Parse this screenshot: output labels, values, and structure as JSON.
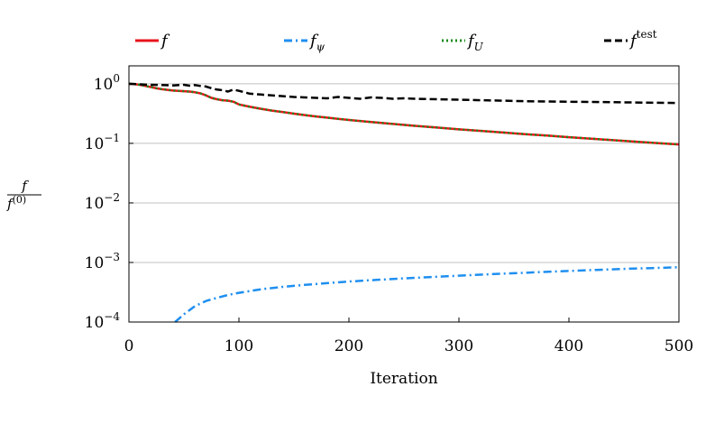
{
  "chart_data": {
    "type": "line",
    "xlabel": "Iteration",
    "ylabel": {
      "numerator": "f",
      "denominator_base": "f",
      "denominator_sup": "(0)"
    },
    "xlim": [
      0,
      500
    ],
    "ylim": [
      0.0001,
      2.0
    ],
    "yscale": "log",
    "grid": "horizontal",
    "legend_position": "top",
    "x_ticks": [
      {
        "value": 0,
        "label": "0"
      },
      {
        "value": 100,
        "label": "100"
      },
      {
        "value": 200,
        "label": "200"
      },
      {
        "value": 300,
        "label": "300"
      },
      {
        "value": 400,
        "label": "400"
      },
      {
        "value": 500,
        "label": "500"
      }
    ],
    "y_ticks": [
      {
        "value": 1,
        "base": "10",
        "exp": "0"
      },
      {
        "value": 0.1,
        "base": "10",
        "exp": "−1"
      },
      {
        "value": 0.01,
        "base": "10",
        "exp": "−2"
      },
      {
        "value": 0.001,
        "base": "10",
        "exp": "−3"
      },
      {
        "value": 0.0001,
        "base": "10",
        "exp": "−4"
      }
    ],
    "series": [
      {
        "name": "f",
        "subscript": "",
        "superscript": "",
        "color": "#e8141c",
        "dash": "solid",
        "points": [
          [
            0,
            1.0
          ],
          [
            5,
            0.99
          ],
          [
            10,
            0.96
          ],
          [
            15,
            0.92
          ],
          [
            20,
            0.88
          ],
          [
            25,
            0.84
          ],
          [
            30,
            0.81
          ],
          [
            35,
            0.79
          ],
          [
            40,
            0.77
          ],
          [
            45,
            0.76
          ],
          [
            50,
            0.75
          ],
          [
            55,
            0.74
          ],
          [
            60,
            0.72
          ],
          [
            65,
            0.69
          ],
          [
            70,
            0.64
          ],
          [
            75,
            0.58
          ],
          [
            80,
            0.55
          ],
          [
            85,
            0.53
          ],
          [
            90,
            0.52
          ],
          [
            95,
            0.5
          ],
          [
            100,
            0.45
          ],
          [
            110,
            0.41
          ],
          [
            120,
            0.38
          ],
          [
            130,
            0.355
          ],
          [
            140,
            0.335
          ],
          [
            150,
            0.315
          ],
          [
            160,
            0.298
          ],
          [
            170,
            0.283
          ],
          [
            180,
            0.27
          ],
          [
            190,
            0.258
          ],
          [
            200,
            0.247
          ],
          [
            220,
            0.228
          ],
          [
            240,
            0.212
          ],
          [
            260,
            0.197
          ],
          [
            280,
            0.184
          ],
          [
            300,
            0.172
          ],
          [
            320,
            0.162
          ],
          [
            340,
            0.152
          ],
          [
            360,
            0.143
          ],
          [
            380,
            0.135
          ],
          [
            400,
            0.127
          ],
          [
            420,
            0.12
          ],
          [
            440,
            0.113
          ],
          [
            460,
            0.107
          ],
          [
            480,
            0.101
          ],
          [
            500,
            0.096
          ]
        ]
      },
      {
        "name": "f",
        "subscript": "ψ",
        "superscript": "",
        "color": "#1f8ff0",
        "dash": "dashdot",
        "points": [
          [
            42,
            0.0001
          ],
          [
            50,
            0.000135
          ],
          [
            60,
            0.000185
          ],
          [
            70,
            0.000225
          ],
          [
            80,
            0.000255
          ],
          [
            90,
            0.000285
          ],
          [
            100,
            0.00031
          ],
          [
            120,
            0.000355
          ],
          [
            140,
            0.00039
          ],
          [
            160,
            0.00042
          ],
          [
            180,
            0.00045
          ],
          [
            200,
            0.000478
          ],
          [
            225,
            0.00051
          ],
          [
            250,
            0.00054
          ],
          [
            275,
            0.00057
          ],
          [
            300,
            0.0006
          ],
          [
            325,
            0.00063
          ],
          [
            350,
            0.00066
          ],
          [
            375,
            0.00069
          ],
          [
            400,
            0.00072
          ],
          [
            425,
            0.00075
          ],
          [
            450,
            0.00078
          ],
          [
            475,
            0.000805
          ],
          [
            500,
            0.00083
          ]
        ]
      },
      {
        "name": "f",
        "subscript": "U",
        "superscript": "",
        "color": "#1a8a1a",
        "dash": "dotted",
        "points": [
          [
            0,
            1.0
          ],
          [
            5,
            0.99
          ],
          [
            10,
            0.96
          ],
          [
            15,
            0.92
          ],
          [
            20,
            0.88
          ],
          [
            25,
            0.84
          ],
          [
            30,
            0.81
          ],
          [
            35,
            0.79
          ],
          [
            40,
            0.77
          ],
          [
            45,
            0.76
          ],
          [
            50,
            0.75
          ],
          [
            55,
            0.74
          ],
          [
            60,
            0.72
          ],
          [
            65,
            0.69
          ],
          [
            70,
            0.64
          ],
          [
            75,
            0.58
          ],
          [
            80,
            0.55
          ],
          [
            85,
            0.53
          ],
          [
            90,
            0.52
          ],
          [
            95,
            0.5
          ],
          [
            100,
            0.45
          ],
          [
            110,
            0.41
          ],
          [
            120,
            0.38
          ],
          [
            130,
            0.355
          ],
          [
            140,
            0.335
          ],
          [
            150,
            0.315
          ],
          [
            160,
            0.298
          ],
          [
            170,
            0.283
          ],
          [
            180,
            0.27
          ],
          [
            190,
            0.258
          ],
          [
            200,
            0.247
          ],
          [
            220,
            0.228
          ],
          [
            240,
            0.212
          ],
          [
            260,
            0.197
          ],
          [
            280,
            0.184
          ],
          [
            300,
            0.172
          ],
          [
            320,
            0.162
          ],
          [
            340,
            0.152
          ],
          [
            360,
            0.143
          ],
          [
            380,
            0.135
          ],
          [
            400,
            0.127
          ],
          [
            420,
            0.12
          ],
          [
            440,
            0.113
          ],
          [
            460,
            0.107
          ],
          [
            480,
            0.101
          ],
          [
            500,
            0.096
          ]
        ]
      },
      {
        "name": "f",
        "subscript": "",
        "superscript": "test",
        "color": "#000000",
        "dash": "dashed",
        "points": [
          [
            0,
            1.0
          ],
          [
            10,
            0.98
          ],
          [
            20,
            0.96
          ],
          [
            30,
            0.95
          ],
          [
            40,
            0.94
          ],
          [
            50,
            0.96
          ],
          [
            55,
            0.93
          ],
          [
            60,
            0.95
          ],
          [
            65,
            0.92
          ],
          [
            70,
            0.9
          ],
          [
            75,
            0.84
          ],
          [
            80,
            0.8
          ],
          [
            85,
            0.78
          ],
          [
            90,
            0.74
          ],
          [
            95,
            0.8
          ],
          [
            100,
            0.76
          ],
          [
            110,
            0.68
          ],
          [
            120,
            0.66
          ],
          [
            130,
            0.64
          ],
          [
            140,
            0.62
          ],
          [
            150,
            0.6
          ],
          [
            160,
            0.59
          ],
          [
            170,
            0.58
          ],
          [
            180,
            0.57
          ],
          [
            190,
            0.6
          ],
          [
            200,
            0.58
          ],
          [
            210,
            0.56
          ],
          [
            220,
            0.59
          ],
          [
            230,
            0.58
          ],
          [
            240,
            0.56
          ],
          [
            250,
            0.57
          ],
          [
            260,
            0.56
          ],
          [
            270,
            0.555
          ],
          [
            280,
            0.55
          ],
          [
            290,
            0.545
          ],
          [
            300,
            0.54
          ],
          [
            320,
            0.53
          ],
          [
            340,
            0.52
          ],
          [
            360,
            0.51
          ],
          [
            380,
            0.505
          ],
          [
            400,
            0.5
          ],
          [
            420,
            0.495
          ],
          [
            440,
            0.49
          ],
          [
            460,
            0.485
          ],
          [
            480,
            0.48
          ],
          [
            500,
            0.475
          ]
        ]
      }
    ]
  }
}
